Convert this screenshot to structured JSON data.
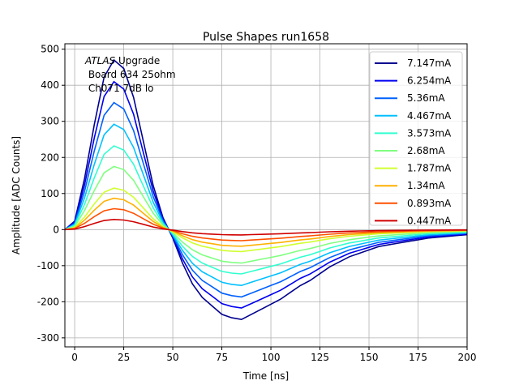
{
  "chart_data": {
    "type": "line",
    "title": "Pulse Shapes run1658",
    "xlabel": "Time [ns]",
    "ylabel": "Amplitude [ADC Counts]",
    "xlim": [
      -5,
      200
    ],
    "ylim": [
      -325,
      515
    ],
    "xticks": [
      0,
      25,
      50,
      75,
      100,
      125,
      150,
      175,
      200
    ],
    "yticks": [
      -300,
      -200,
      -100,
      0,
      100,
      200,
      300,
      400,
      500
    ],
    "grid": true,
    "legend_position": "top-right",
    "annotation": {
      "italic": "ATLAS",
      "rest": " Upgrade",
      "line2": " Board 634 25ohm",
      "line3": " Ch071 7dB lo"
    },
    "x": [
      -5,
      0,
      5,
      10,
      15,
      20,
      25,
      30,
      35,
      40,
      45,
      50,
      55,
      60,
      65,
      70,
      75,
      80,
      85,
      90,
      95,
      100,
      105,
      110,
      115,
      120,
      125,
      130,
      135,
      140,
      145,
      150,
      155,
      160,
      165,
      170,
      175,
      180,
      185,
      190,
      195,
      200
    ],
    "normalized_shape": [
      0,
      0.05,
      0.3,
      0.62,
      0.9,
      1.0,
      0.95,
      0.78,
      0.52,
      0.26,
      0.07,
      -0.05,
      -0.2,
      -0.32,
      -0.4,
      -0.45,
      -0.5,
      -0.52,
      -0.53,
      -0.5,
      -0.47,
      -0.44,
      -0.41,
      -0.37,
      -0.33,
      -0.3,
      -0.26,
      -0.22,
      -0.19,
      -0.16,
      -0.14,
      -0.12,
      -0.1,
      -0.09,
      -0.08,
      -0.07,
      -0.06,
      -0.05,
      -0.045,
      -0.04,
      -0.035,
      -0.03
    ],
    "series": [
      {
        "name": "7.147mA",
        "peak": 470,
        "color": "#00008f"
      },
      {
        "name": "6.254mA",
        "peak": 410,
        "color": "#0000f0"
      },
      {
        "name": "5.36mA",
        "peak": 352,
        "color": "#0060ff"
      },
      {
        "name": "4.467mA",
        "peak": 292,
        "color": "#00c0ff"
      },
      {
        "name": "3.573mA",
        "peak": 232,
        "color": "#30ffd0"
      },
      {
        "name": "2.68mA",
        "peak": 175,
        "color": "#80ff80"
      },
      {
        "name": "1.787mA",
        "peak": 115,
        "color": "#d0ff30"
      },
      {
        "name": "1.34mA",
        "peak": 87,
        "color": "#ffb000"
      },
      {
        "name": "0.893mA",
        "peak": 58,
        "color": "#ff5000"
      },
      {
        "name": "0.447mA",
        "peak": 28,
        "color": "#d00000"
      }
    ]
  }
}
